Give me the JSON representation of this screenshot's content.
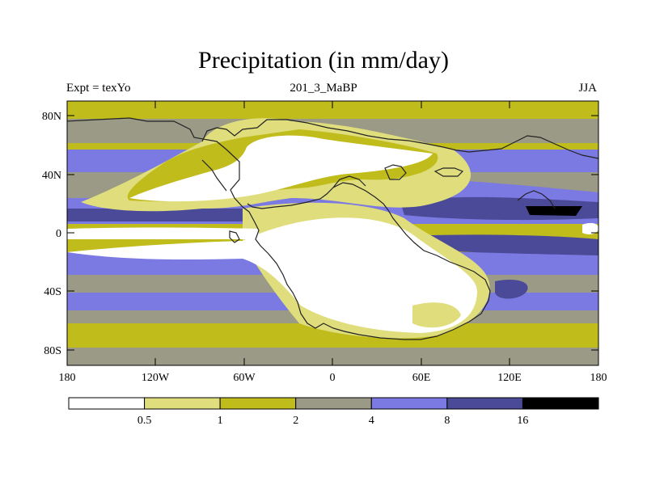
{
  "title": "Precipitation (in mm/day)",
  "subtitle_left": "Expt = texYo",
  "subtitle_center": "201_3_MaBP",
  "subtitle_right": "JJA",
  "lat_ticks": [
    "80N",
    "40N",
    "0",
    "40S",
    "80S"
  ],
  "lon_ticks": [
    "180",
    "120W",
    "60W",
    "0",
    "60E",
    "120E",
    "180"
  ],
  "colorbar": {
    "labels": [
      "0.5",
      "1",
      "2",
      "4",
      "8",
      "16"
    ],
    "colors": [
      "#ffffff",
      "#e0dd7c",
      "#c0bc1c",
      "#9a9a86",
      "#7b79e2",
      "#4b4a98",
      "#000000"
    ]
  }
}
